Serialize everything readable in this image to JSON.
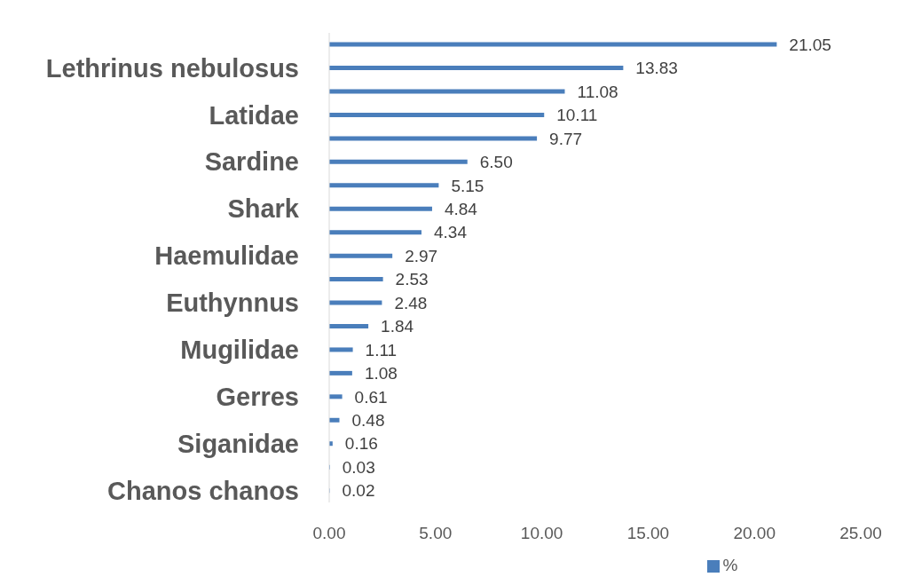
{
  "chart_data": {
    "type": "bar",
    "orientation": "horizontal",
    "categories": [
      null,
      "Lethrinus nebulosus",
      null,
      "Latidae",
      null,
      "Sardine",
      null,
      "Shark",
      null,
      "Haemulidae",
      null,
      "Euthynnus",
      null,
      "Mugilidae",
      null,
      "Gerres",
      null,
      "Siganidae",
      null,
      "Chanos chanos"
    ],
    "series": [
      {
        "name": "%",
        "color": "#4a7ebb",
        "values": [
          21.05,
          13.83,
          11.08,
          10.11,
          9.77,
          6.5,
          5.15,
          4.84,
          4.34,
          2.97,
          2.53,
          2.48,
          1.84,
          1.11,
          1.08,
          0.61,
          0.48,
          0.16,
          0.03,
          0.02
        ],
        "value_labels": [
          "21.05",
          "13.83",
          "11.08",
          "10.11",
          "9.77",
          "6.50",
          "5.15",
          "4.84",
          "4.34",
          "2.97",
          "2.53",
          "2.48",
          "1.84",
          "1.11",
          "1.08",
          "0.61",
          "0.48",
          "0.16",
          "0.03",
          "0.02"
        ]
      }
    ],
    "xlim": [
      0,
      25
    ],
    "xticks": [
      {
        "value": 0,
        "label": "0.00"
      },
      {
        "value": 5,
        "label": "5.00"
      },
      {
        "value": 10,
        "label": "10.00"
      },
      {
        "value": 15,
        "label": "15.00"
      },
      {
        "value": 20,
        "label": "20.00"
      },
      {
        "value": 25,
        "label": "25.00"
      }
    ],
    "legend": "bottom"
  }
}
